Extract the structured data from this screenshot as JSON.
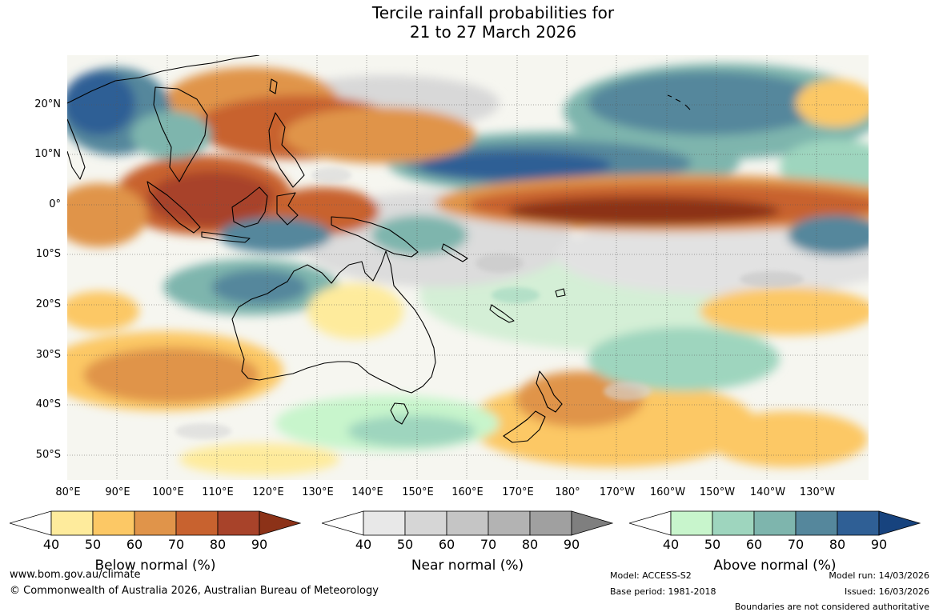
{
  "title": {
    "line1": "Tercile rainfall probabilities for",
    "line2": "21 to 27 March 2026"
  },
  "latitude_labels": [
    "20°N",
    "10°N",
    "0°",
    "10°S",
    "20°S",
    "30°S",
    "40°S",
    "50°S"
  ],
  "longitude_labels": [
    "80°E",
    "90°E",
    "100°E",
    "110°E",
    "120°E",
    "130°E",
    "140°E",
    "150°E",
    "160°E",
    "170°E",
    "180°",
    "170°W",
    "160°W",
    "150°W",
    "140°W",
    "130°W"
  ],
  "colorbars": [
    {
      "label": "Below normal (%)",
      "ticks": [
        "40",
        "50",
        "60",
        "70",
        "80",
        "90"
      ],
      "colors": [
        "#ffffff",
        "#feeb9c",
        "#fcc865",
        "#e0944a",
        "#c8622f",
        "#a8432a",
        "#8c3218"
      ]
    },
    {
      "label": "Near normal (%)",
      "ticks": [
        "40",
        "50",
        "60",
        "70",
        "80",
        "90"
      ],
      "colors": [
        "#ffffff",
        "#e8e8e8",
        "#d6d6d6",
        "#c5c5c5",
        "#b3b3b3",
        "#a0a0a0",
        "#7f7f7f"
      ]
    },
    {
      "label": "Above normal (%)",
      "ticks": [
        "40",
        "50",
        "60",
        "70",
        "80",
        "90"
      ],
      "colors": [
        "#ffffff",
        "#c8f5cc",
        "#9ed5be",
        "#7eb5ad",
        "#55879c",
        "#2f5f95",
        "#17437e"
      ]
    }
  ],
  "footer": {
    "website": "www.bom.gov.au/climate",
    "copyright": "© Commonwealth of Australia 2026, Australian Bureau of Meteorology",
    "model": "Model: ACCESS-S2",
    "base_period": "Base period: 1981-2018",
    "model_run": "Model run: 14/03/2026",
    "issued": "Issued: 16/03/2026",
    "disclaimer": "Boundaries are not considered authoritative"
  }
}
